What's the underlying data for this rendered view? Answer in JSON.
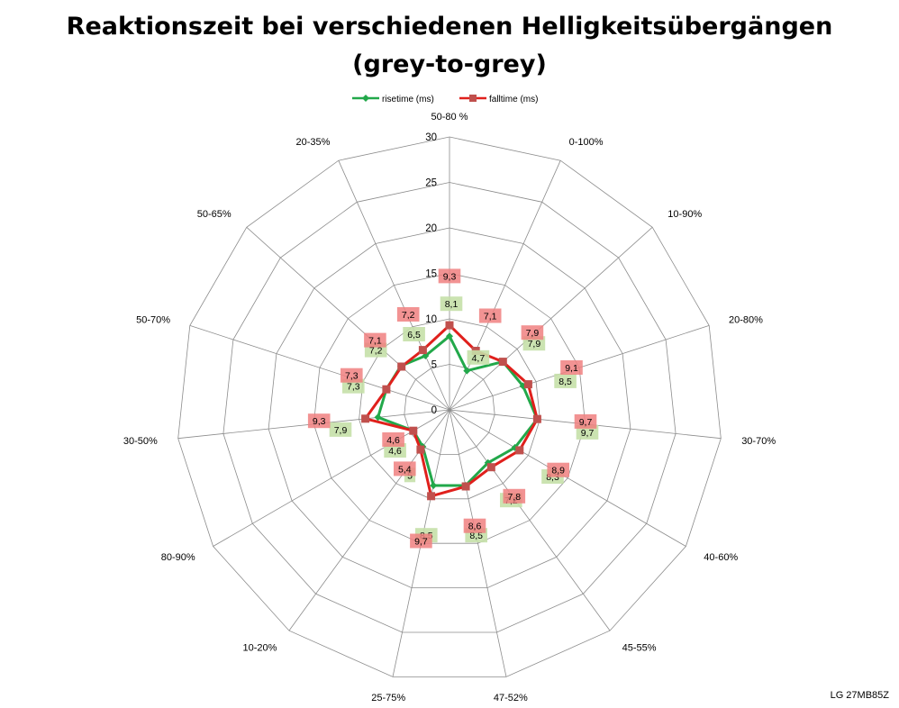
{
  "chart_data": {
    "type": "radar",
    "title_line1": "Reaktionszeit bei verschiedenen Helligkeitsübergängen",
    "title_line2": "(grey-to-grey)",
    "categories": [
      "50-80 %",
      "0-100%",
      "10-90%",
      "20-80%",
      "30-70%",
      "40-60%",
      "45-55%",
      "47-52%",
      "25-75%",
      "10-20%",
      "80-90%",
      "30-50%",
      "50-70%",
      "50-65%",
      "20-35%"
    ],
    "rlim": [
      0,
      30
    ],
    "ticks": [
      "0",
      "5",
      "10",
      "15",
      "20",
      "25",
      "30"
    ],
    "tick_values": [
      0,
      5,
      10,
      15,
      20,
      25,
      30
    ],
    "grid": true,
    "legend_position": "top",
    "series": [
      {
        "name": "risetime (ms)",
        "color": "#22a84a",
        "label_bg": "#c5e0a8",
        "values": [
          8.1,
          4.7,
          7.9,
          8.5,
          9.7,
          8.3,
          7.2,
          8.5,
          8.5,
          5.0,
          4.6,
          7.9,
          7.3,
          7.2,
          6.5
        ],
        "labels": [
          "8,1",
          "4,7",
          "7,9",
          "8,5",
          "9,7",
          "8,3",
          "7,2",
          "8,5",
          "8,5",
          "5",
          "4,6",
          "7,9",
          "7,3",
          "7,2",
          "6,5"
        ]
      },
      {
        "name": "falltime (ms)",
        "color": "#e0201c",
        "label_bg": "#f08080",
        "values": [
          9.3,
          7.1,
          7.9,
          9.1,
          9.7,
          8.9,
          7.8,
          8.6,
          9.7,
          5.4,
          4.6,
          9.3,
          7.3,
          7.1,
          7.2
        ],
        "labels": [
          "9,3",
          "7,1",
          "7,9",
          "9,1",
          "9,7",
          "8,9",
          "7,8",
          "8,6",
          "9,7",
          "5,4",
          "4,6",
          "9,3",
          "7,3",
          "7,1",
          "7,2"
        ]
      }
    ]
  },
  "watermark": "LG 27MB85Z"
}
